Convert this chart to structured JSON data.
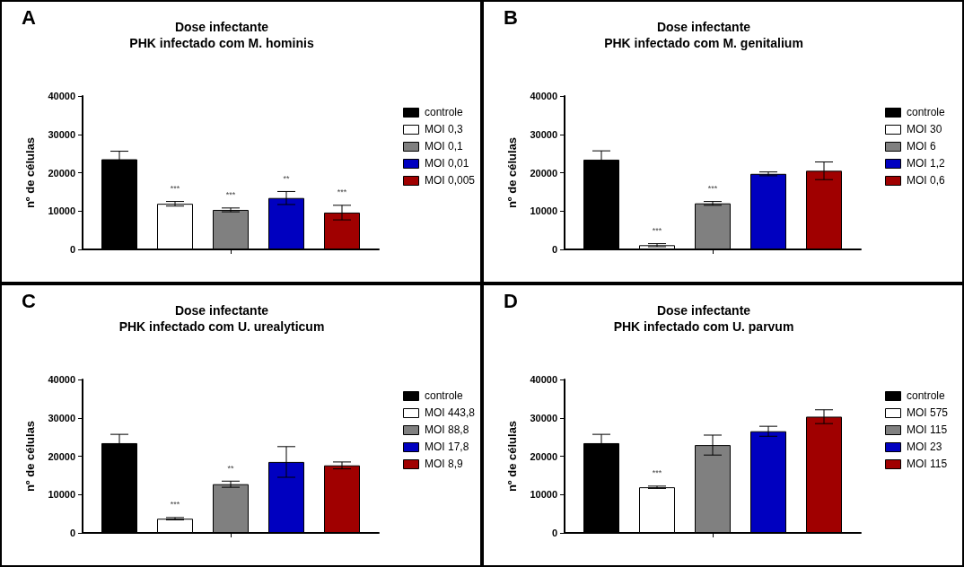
{
  "chart_data": [
    {
      "type": "bar",
      "title": "Dose infectante",
      "subtitle": "PHK infectado com M. hominis",
      "ylabel": "nº de células",
      "annotations": [
        "A"
      ],
      "categories": [
        null
      ],
      "ylim": [
        0,
        40000
      ],
      "yticks": [
        0,
        10000,
        20000,
        30000,
        40000
      ],
      "grid": false,
      "legend": "right",
      "tick_labels": "y",
      "series": [
        {
          "name": "controle",
          "color": "#000000",
          "values": [
            23500
          ],
          "errors": [
            2100
          ]
        },
        {
          "name": "MOI 0,3",
          "color": "#ffffff",
          "values": [
            11900
          ],
          "errors": [
            600
          ],
          "value_labels": [
            "***"
          ]
        },
        {
          "name": "MOI 0,1",
          "color": "#808080",
          "values": [
            10300
          ],
          "errors": [
            500
          ],
          "value_labels": [
            "***"
          ]
        },
        {
          "name": "MOI 0,01",
          "color": "#0000c0",
          "values": [
            13400
          ],
          "errors": [
            1700
          ],
          "value_labels": [
            "**"
          ]
        },
        {
          "name": "MOI 0,005",
          "color": "#a00000",
          "values": [
            9600
          ],
          "errors": [
            1900
          ],
          "value_labels": [
            "***"
          ]
        }
      ]
    },
    {
      "type": "bar",
      "title": "Dose infectante",
      "subtitle": "PHK infectado com M. genitalium",
      "ylabel": "nº de células",
      "annotations": [
        "B"
      ],
      "categories": [
        null
      ],
      "ylim": [
        0,
        40000
      ],
      "yticks": [
        0,
        10000,
        20000,
        30000,
        40000
      ],
      "grid": false,
      "legend": "right",
      "tick_labels": "y",
      "series": [
        {
          "name": "controle",
          "color": "#000000",
          "values": [
            23400
          ],
          "errors": [
            2300
          ]
        },
        {
          "name": "MOI 30",
          "color": "#ffffff",
          "values": [
            1100
          ],
          "errors": [
            400
          ],
          "value_labels": [
            "***"
          ]
        },
        {
          "name": "MOI 6",
          "color": "#808080",
          "values": [
            12000
          ],
          "errors": [
            500
          ],
          "value_labels": [
            "***"
          ]
        },
        {
          "name": "MOI 1,2",
          "color": "#0000c0",
          "values": [
            19700
          ],
          "errors": [
            500
          ]
        },
        {
          "name": "MOI 0,6",
          "color": "#a00000",
          "values": [
            20500
          ],
          "errors": [
            2300
          ]
        }
      ]
    },
    {
      "type": "bar",
      "title": "Dose infectante",
      "subtitle": "PHK infectado com U. urealyticum",
      "ylabel": "nº de células",
      "annotations": [
        "C"
      ],
      "categories": [
        null
      ],
      "ylim": [
        0,
        40000
      ],
      "yticks": [
        0,
        10000,
        20000,
        30000,
        40000
      ],
      "grid": false,
      "legend": "right",
      "tick_labels": "y",
      "series": [
        {
          "name": "controle",
          "color": "#000000",
          "values": [
            23400
          ],
          "errors": [
            2300
          ]
        },
        {
          "name": "MOI 443,8",
          "color": "#ffffff",
          "values": [
            3700
          ],
          "errors": [
            300
          ],
          "value_labels": [
            "***"
          ]
        },
        {
          "name": "MOI 88,8",
          "color": "#808080",
          "values": [
            12700
          ],
          "errors": [
            800
          ],
          "value_labels": [
            "**"
          ]
        },
        {
          "name": "MOI 17,8",
          "color": "#0000c0",
          "values": [
            18500
          ],
          "errors": [
            4000
          ]
        },
        {
          "name": "MOI 8,9",
          "color": "#a00000",
          "values": [
            17600
          ],
          "errors": [
            900
          ]
        }
      ]
    },
    {
      "type": "bar",
      "title": "Dose infectante",
      "subtitle": "PHK infectado com U. parvum",
      "ylabel": "nº de células",
      "annotations": [
        "D"
      ],
      "categories": [
        null
      ],
      "ylim": [
        0,
        40000
      ],
      "yticks": [
        0,
        10000,
        20000,
        30000,
        40000
      ],
      "grid": false,
      "legend": "right",
      "tick_labels": "y",
      "series": [
        {
          "name": "controle",
          "color": "#000000",
          "values": [
            23400
          ],
          "errors": [
            2300
          ]
        },
        {
          "name": "MOI 575",
          "color": "#ffffff",
          "values": [
            11900
          ],
          "errors": [
            300
          ],
          "value_labels": [
            "***"
          ]
        },
        {
          "name": "MOI 115",
          "color": "#808080",
          "values": [
            22900
          ],
          "errors": [
            2600
          ]
        },
        {
          "name": "MOI 23",
          "color": "#0000c0",
          "values": [
            26500
          ],
          "errors": [
            1300
          ]
        },
        {
          "name": "MOI 115",
          "color": "#a00000",
          "values": [
            30300
          ],
          "errors": [
            1800
          ]
        }
      ]
    }
  ]
}
